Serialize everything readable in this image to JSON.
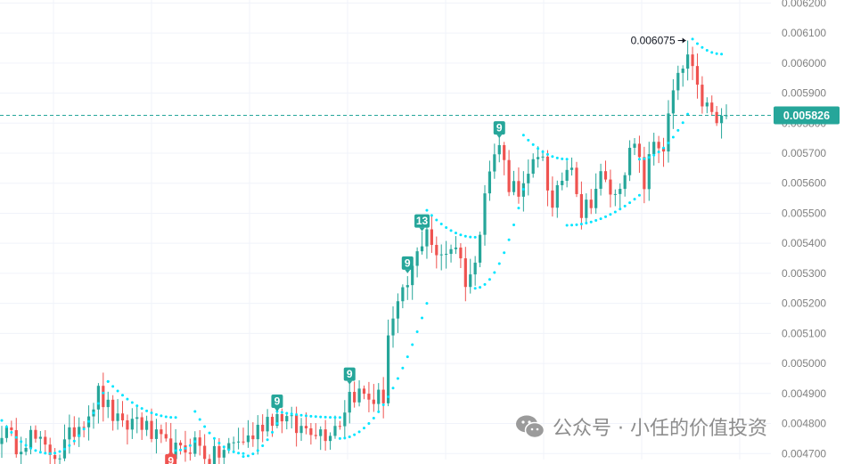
{
  "colors": {
    "up": "#26a69a",
    "down": "#ef5350",
    "sar": "#00e5ff",
    "price_line": "#26a69a",
    "grid": "#f0f3fa",
    "axis_text": "#808080",
    "badge_up": "#26a69a",
    "badge_down": "#ef5350"
  },
  "watermark": {
    "text": "公众号 · 小任的价值投资",
    "icon": "wechat-icon"
  },
  "chart_data": {
    "type": "candlestick",
    "y_ticks": [
      "0.006200",
      "0.006100",
      "0.006000",
      "0.005900",
      "0.005800",
      "0.005700",
      "0.005600",
      "0.005500",
      "0.005400",
      "0.005300",
      "0.005200",
      "0.005100",
      "0.005000",
      "0.004900",
      "0.004800",
      "0.004700"
    ],
    "ylim": [
      0.00468,
      0.00621
    ],
    "n_candles": 151,
    "last_price": 0.005826,
    "last_price_label": "0.005826",
    "high_annotation": {
      "value": 0.006075,
      "label": "0.006075",
      "candle_index": 142
    },
    "sequence_badges": [
      {
        "label": "9",
        "candle_index": 35,
        "direction": "down",
        "anchor": 0.00471
      },
      {
        "label": "9",
        "candle_index": 57,
        "direction": "up",
        "anchor": 0.00484
      },
      {
        "label": "9",
        "candle_index": 72,
        "direction": "up",
        "anchor": 0.00493
      },
      {
        "label": "9",
        "candle_index": 84,
        "direction": "up",
        "anchor": 0.0053
      },
      {
        "label": "13",
        "candle_index": 87,
        "direction": "up",
        "anchor": 0.00544
      },
      {
        "label": "9",
        "candle_index": 103,
        "direction": "up",
        "anchor": 0.00575
      }
    ],
    "path_anchors": [
      [
        0,
        0.00478
      ],
      [
        3,
        0.00473
      ],
      [
        6,
        0.00476
      ],
      [
        9,
        0.00471
      ],
      [
        12,
        0.0047
      ],
      [
        15,
        0.00478
      ],
      [
        18,
        0.00484
      ],
      [
        20,
        0.0049
      ],
      [
        22,
        0.00485
      ],
      [
        25,
        0.00478
      ],
      [
        28,
        0.00482
      ],
      [
        31,
        0.00476
      ],
      [
        34,
        0.00472
      ],
      [
        37,
        0.0047
      ],
      [
        40,
        0.00474
      ],
      [
        43,
        0.00468
      ],
      [
        46,
        0.00471
      ],
      [
        49,
        0.00474
      ],
      [
        52,
        0.00476
      ],
      [
        55,
        0.00482
      ],
      [
        58,
        0.00483
      ],
      [
        61,
        0.00478
      ],
      [
        64,
        0.00479
      ],
      [
        67,
        0.00477
      ],
      [
        70,
        0.00481
      ],
      [
        72,
        0.0049
      ],
      [
        74,
        0.0049
      ],
      [
        77,
        0.00488
      ],
      [
        79,
        0.00489
      ],
      [
        80,
        0.0051
      ],
      [
        82,
        0.00518
      ],
      [
        84,
        0.00526
      ],
      [
        86,
        0.00536
      ],
      [
        88,
        0.00546
      ],
      [
        90,
        0.00534
      ],
      [
        92,
        0.00538
      ],
      [
        94,
        0.0054
      ],
      [
        96,
        0.00528
      ],
      [
        98,
        0.00532
      ],
      [
        100,
        0.0056
      ],
      [
        103,
        0.00573
      ],
      [
        105,
        0.0056
      ],
      [
        108,
        0.00558
      ],
      [
        110,
        0.00565
      ],
      [
        112,
        0.0057
      ],
      [
        114,
        0.0055
      ],
      [
        116,
        0.00562
      ],
      [
        118,
        0.00568
      ],
      [
        120,
        0.0055
      ],
      [
        122,
        0.00555
      ],
      [
        124,
        0.00562
      ],
      [
        127,
        0.00555
      ],
      [
        129,
        0.00566
      ],
      [
        131,
        0.00572
      ],
      [
        133,
        0.0056
      ],
      [
        135,
        0.00574
      ],
      [
        137,
        0.00572
      ],
      [
        139,
        0.0059
      ],
      [
        141,
        0.00598
      ],
      [
        142,
        0.00602
      ],
      [
        144,
        0.0059
      ],
      [
        146,
        0.00585
      ],
      [
        148,
        0.0058
      ],
      [
        150,
        0.00582
      ]
    ],
    "sar_segments": [
      {
        "start": 0,
        "end": 10,
        "from": 0.00481,
        "to": 0.0047,
        "side": "above"
      },
      {
        "start": 10,
        "end": 22,
        "from": 0.0047,
        "to": 0.00494,
        "side": "below"
      },
      {
        "start": 22,
        "end": 36,
        "from": 0.00494,
        "to": 0.00482,
        "side": "above"
      },
      {
        "start": 36,
        "end": 40,
        "from": 0.00471,
        "to": 0.00474,
        "side": "below"
      },
      {
        "start": 40,
        "end": 50,
        "from": 0.00484,
        "to": 0.0047,
        "side": "above"
      },
      {
        "start": 50,
        "end": 57,
        "from": 0.00469,
        "to": 0.0048,
        "side": "below"
      },
      {
        "start": 57,
        "end": 70,
        "from": 0.00484,
        "to": 0.00482,
        "side": "above"
      },
      {
        "start": 70,
        "end": 88,
        "from": 0.00475,
        "to": 0.0052,
        "side": "below"
      },
      {
        "start": 88,
        "end": 98,
        "from": 0.00551,
        "to": 0.00542,
        "side": "above"
      },
      {
        "start": 98,
        "end": 108,
        "from": 0.00525,
        "to": 0.00558,
        "side": "below"
      },
      {
        "start": 108,
        "end": 117,
        "from": 0.00576,
        "to": 0.00568,
        "side": "above"
      },
      {
        "start": 117,
        "end": 132,
        "from": 0.00546,
        "to": 0.00556,
        "side": "below"
      },
      {
        "start": 132,
        "end": 142,
        "from": 0.00568,
        "to": 0.00583,
        "side": "below"
      },
      {
        "start": 143,
        "end": 149,
        "from": 0.00608,
        "to": 0.00603,
        "side": "above"
      }
    ]
  }
}
